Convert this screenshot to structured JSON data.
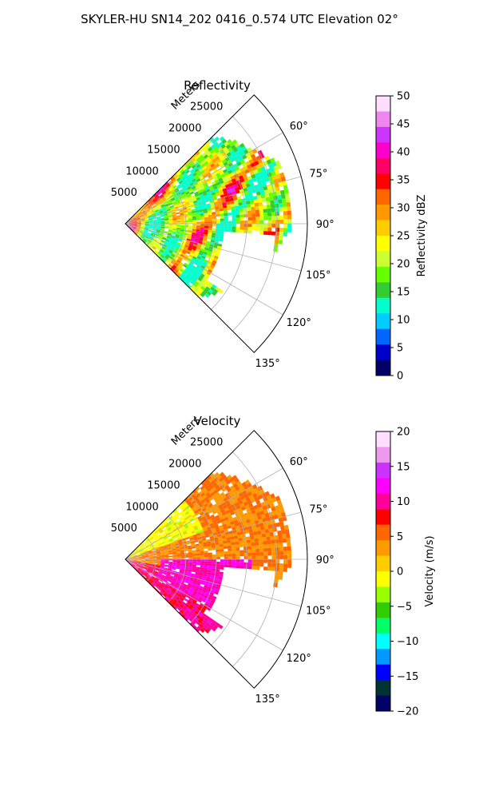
{
  "suptitle": "SKYLER-HU  SN14_202  0416_0.574 UTC Elevation 02°",
  "chart_data": [
    {
      "type": "heatmap",
      "title": "Reflectivity",
      "projection": "polar sector",
      "range_label": "Meters",
      "range_ticks": [
        5000,
        10000,
        15000,
        20000,
        25000
      ],
      "range_max": 30000,
      "azimuth_range_deg": [
        45,
        135
      ],
      "azimuth_ticks": [
        "60°",
        "75°",
        "90°",
        "105°",
        "120°",
        "135°"
      ],
      "grid": true,
      "colorbar": {
        "label": "Reflectivity dBZ",
        "min": 0,
        "max": 50,
        "ticks": [
          "0",
          "5",
          "10",
          "15",
          "20",
          "25",
          "30",
          "35",
          "40",
          "45",
          "50"
        ],
        "colors": [
          "#000066",
          "#0000cc",
          "#0066ff",
          "#00ccff",
          "#00ffcc",
          "#33cc33",
          "#66ff00",
          "#ccff33",
          "#ffff00",
          "#ffcc00",
          "#ff9900",
          "#ff6600",
          "#ff0000",
          "#ff0066",
          "#ff00cc",
          "#cc33ff",
          "#ee88ee",
          "#ffddff"
        ]
      }
    },
    {
      "type": "heatmap",
      "title": "Velocity",
      "projection": "polar sector",
      "range_label": "Meters",
      "range_ticks": [
        5000,
        10000,
        15000,
        20000,
        25000
      ],
      "range_max": 30000,
      "azimuth_range_deg": [
        45,
        135
      ],
      "azimuth_ticks": [
        "60°",
        "75°",
        "90°",
        "105°",
        "120°",
        "135°"
      ],
      "grid": true,
      "colorbar": {
        "label": "Velocity (m/s)",
        "min": -20,
        "max": 20,
        "ticks": [
          "−20",
          "−15",
          "−10",
          "−5",
          "0",
          "5",
          "10",
          "15",
          "20"
        ],
        "colors": [
          "#000066",
          "#003333",
          "#0000ff",
          "#0099ff",
          "#00ffff",
          "#00ff66",
          "#33cc00",
          "#99ff00",
          "#ffff00",
          "#ffcc00",
          "#ff9900",
          "#ff6600",
          "#ff0000",
          "#ff0099",
          "#ff00ff",
          "#cc33ff",
          "#ee99ee",
          "#ffddff"
        ]
      }
    }
  ]
}
